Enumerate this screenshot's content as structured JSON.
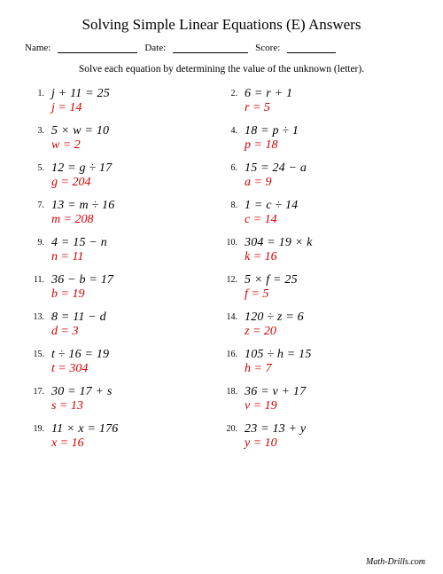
{
  "title": "Solving Simple Linear Equations (E) Answers",
  "header": {
    "name_label": "Name:",
    "date_label": "Date:",
    "score_label": "Score:"
  },
  "instructions": "Solve each equation by determining the value of the unknown (letter).",
  "problems": [
    {
      "n": "1.",
      "eq": "j + 11 = 25",
      "ans": "j = 14"
    },
    {
      "n": "2.",
      "eq": "6 = r + 1",
      "ans": "r = 5"
    },
    {
      "n": "3.",
      "eq": "5 × w = 10",
      "ans": "w = 2"
    },
    {
      "n": "4.",
      "eq": "18 = p ÷ 1",
      "ans": "p = 18"
    },
    {
      "n": "5.",
      "eq": "12 = g ÷ 17",
      "ans": "g = 204"
    },
    {
      "n": "6.",
      "eq": "15 = 24 − a",
      "ans": "a = 9"
    },
    {
      "n": "7.",
      "eq": "13 = m ÷ 16",
      "ans": "m = 208"
    },
    {
      "n": "8.",
      "eq": "1 = c ÷ 14",
      "ans": "c = 14"
    },
    {
      "n": "9.",
      "eq": "4 = 15 − n",
      "ans": "n = 11"
    },
    {
      "n": "10.",
      "eq": "304 = 19 × k",
      "ans": "k = 16"
    },
    {
      "n": "11.",
      "eq": "36 − b = 17",
      "ans": "b = 19"
    },
    {
      "n": "12.",
      "eq": "5 × f = 25",
      "ans": "f = 5"
    },
    {
      "n": "13.",
      "eq": "8 = 11 − d",
      "ans": "d = 3"
    },
    {
      "n": "14.",
      "eq": "120 ÷ z = 6",
      "ans": "z = 20"
    },
    {
      "n": "15.",
      "eq": "t ÷ 16 = 19",
      "ans": "t = 304"
    },
    {
      "n": "16.",
      "eq": "105 ÷ h = 15",
      "ans": "h = 7"
    },
    {
      "n": "17.",
      "eq": "30 = 17 + s",
      "ans": "s = 13"
    },
    {
      "n": "18.",
      "eq": "36 = v + 17",
      "ans": "v = 19"
    },
    {
      "n": "19.",
      "eq": "11 × x = 176",
      "ans": "x = 16"
    },
    {
      "n": "20.",
      "eq": "23 = 13 + y",
      "ans": "y = 10"
    }
  ],
  "footer": "Math-Drills.com",
  "style": {
    "title_fontsize": 17,
    "body_fontsize": 14,
    "answer_color": "#d00000",
    "text_color": "#000000",
    "background_color": "#ffffff",
    "columns": 2,
    "rows": 10
  }
}
